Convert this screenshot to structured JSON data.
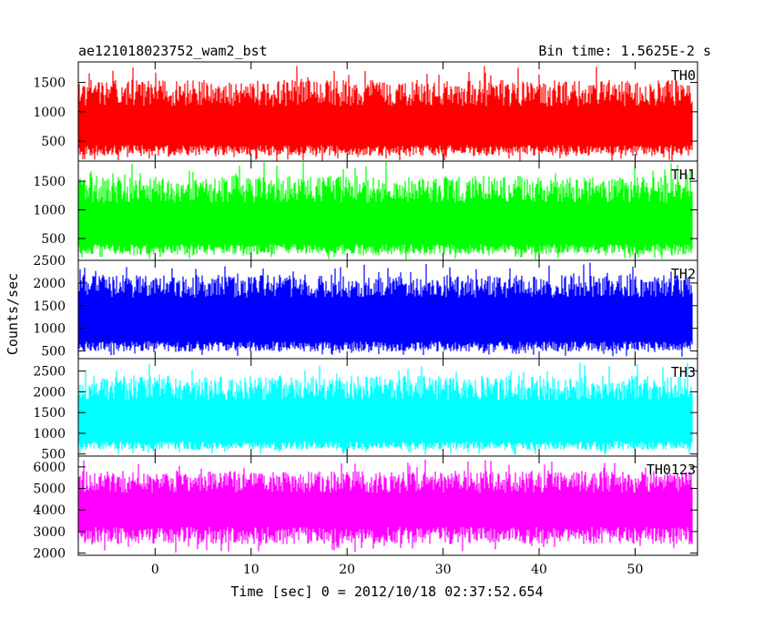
{
  "chart_data": {
    "type": "line",
    "title": "ae121018023752_wam2_bst",
    "bin_time": "Bin time: 1.5625E-2 s",
    "ylabel": "Counts/sec",
    "xlabel": "Time [sec] 0 = 2012/10/18 02:37:52.654",
    "xlim": [
      -8,
      56.5
    ],
    "x_data_range": [
      -8,
      56
    ],
    "xticks": [
      0,
      10,
      20,
      30,
      40,
      50
    ],
    "xtick_labels": [
      "0",
      "10",
      "20",
      "30",
      "40",
      "50"
    ],
    "panels": [
      {
        "name": "TH0",
        "color": "#ff0000",
        "ylim": [
          160,
          1850
        ],
        "yticks": [
          500,
          1000,
          1500
        ],
        "ytick_labels": [
          "500",
          "1000",
          "1500"
        ],
        "mean": 780,
        "band_low": 360,
        "band_high": 1250,
        "min": 160,
        "max": 1780,
        "seed": 11
      },
      {
        "name": "TH1",
        "color": "#00ff00",
        "ylim": [
          120,
          1850
        ],
        "yticks": [
          500,
          1000,
          1500
        ],
        "ytick_labels": [
          "500",
          "1000",
          "1500"
        ],
        "mean": 800,
        "band_low": 330,
        "band_high": 1290,
        "min": 130,
        "max": 1840,
        "seed": 23
      },
      {
        "name": "TH2",
        "color": "#0000ff",
        "ylim": [
          330,
          2500
        ],
        "yticks": [
          500,
          1000,
          1500,
          2000,
          2500
        ],
        "ytick_labels": [
          "500",
          "1000",
          "1500",
          "2000",
          "2500"
        ],
        "mean": 1230,
        "band_low": 620,
        "band_high": 1850,
        "min": 370,
        "max": 2450,
        "seed": 37
      },
      {
        "name": "TH3",
        "color": "#00ffff",
        "ylim": [
          450,
          2800
        ],
        "yticks": [
          500,
          1000,
          1500,
          2000,
          2500
        ],
        "ytick_labels": [
          "500",
          "1000",
          "1500",
          "2000",
          "2500"
        ],
        "mean": 1340,
        "band_low": 720,
        "band_high": 2000,
        "min": 480,
        "max": 2720,
        "seed": 53
      },
      {
        "name": "TH0123",
        "color": "#ff00ff",
        "ylim": [
          1900,
          6500
        ],
        "yticks": [
          2000,
          3000,
          4000,
          5000,
          6000
        ],
        "ytick_labels": [
          "2000",
          "3000",
          "4000",
          "5000",
          "6000"
        ],
        "mean": 4000,
        "band_low": 2900,
        "band_high": 5150,
        "min": 2000,
        "max": 6350,
        "seed": 71
      }
    ]
  }
}
